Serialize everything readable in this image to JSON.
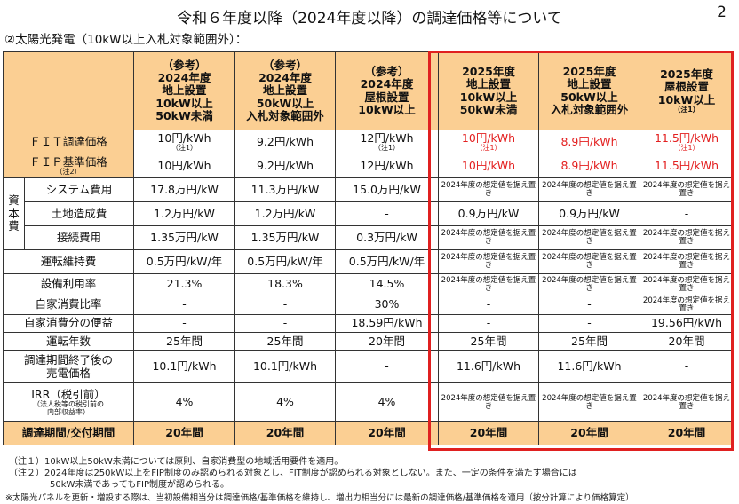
{
  "title": "令和６年度以降（2024年度以降）の調達価格等について",
  "page_number": "2",
  "subtitle": "②太陽光発電（10kW以上入札対象範囲外）：",
  "columns": [
    {
      "l1": "（参考）",
      "l2": "2024年度",
      "l3": "地上設置",
      "l4": "10kW以上",
      "l5": "50kW未満",
      "note": ""
    },
    {
      "l1": "（参考）",
      "l2": "2024年度",
      "l3": "地上設置",
      "l4": "50kW以上",
      "l5": "入札対象範囲外",
      "note": ""
    },
    {
      "l1": "（参考）",
      "l2": "2024年度",
      "l3": "屋根設置",
      "l4": "10kW以上",
      "l5": "",
      "note": ""
    },
    {
      "l1": "2025年度",
      "l2": "地上設置",
      "l3": "10kW以上",
      "l4": "50kW未満",
      "l5": "",
      "note": ""
    },
    {
      "l1": "2025年度",
      "l2": "地上設置",
      "l3": "50kW以上",
      "l4": "入札対象範囲外",
      "l5": "",
      "note": ""
    },
    {
      "l1": "2025年度",
      "l2": "屋根設置",
      "l3": "10kW以上",
      "l4": "",
      "l5": "",
      "note": "（注1）"
    }
  ],
  "rows": {
    "fit": {
      "label": "ＦＩＴ調達価格",
      "values": [
        "10円/kWh",
        "9.2円/kWh",
        "12円/kWh",
        "10円/kWh",
        "8.9円/kWh",
        "11.5円/kWh"
      ],
      "notes": [
        "（注1）",
        "",
        "（注1）",
        "（注1）",
        "",
        "（注1）"
      ]
    },
    "fip": {
      "label": "ＦＩＰ基準価格",
      "note": "（注2）",
      "values": [
        "10円/kWh",
        "9.2円/kWh",
        "12円/kWh",
        "10円/kWh",
        "8.9円/kWh",
        "11.5円/kWh"
      ]
    },
    "capital_group": "資本費",
    "capital_group_chars": [
      "資",
      "本",
      "費"
    ],
    "system": {
      "label": "システム費用",
      "values": [
        "17.8万円/kW",
        "11.3万円/kW",
        "15.0万円/kW",
        "2024年度の想定値を据え置き",
        "2024年度の想定値を据え置き",
        "2024年度の想定値を据え置き"
      ]
    },
    "land": {
      "label": "土地造成費",
      "values": [
        "1.2万円/kW",
        "1.2万円/kW",
        "-",
        "0.9万円/kW",
        "0.9万円/kW",
        "-"
      ]
    },
    "connection": {
      "label": "接続費用",
      "values": [
        "1.35万円/kW",
        "1.35万円/kW",
        "0.3万円/kW",
        "2024年度の想定値を据え置き",
        "2024年度の想定値を据え置き",
        "2024年度の想定値を据え置き"
      ]
    },
    "om": {
      "label": "運転維持費",
      "values": [
        "0.5万円/kW/年",
        "0.5万円/kW/年",
        "0.5万円/kW/年",
        "2024年度の想定値を据え置き",
        "2024年度の想定値を据え置き",
        "2024年度の想定値を据え置き"
      ]
    },
    "capacity": {
      "label": "設備利用率",
      "values": [
        "21.3%",
        "18.3%",
        "14.5%",
        "2024年度の想定値を据え置き",
        "2024年度の想定値を据え置き",
        "2024年度の想定値を据え置き"
      ]
    },
    "self_ratio": {
      "label": "自家消費比率",
      "values": [
        "-",
        "-",
        "30%",
        "-",
        "-",
        "2024年度の想定値を据え置き"
      ]
    },
    "self_benefit": {
      "label": "自家消費分の便益",
      "values": [
        "-",
        "-",
        "18.59円/kWh",
        "-",
        "-",
        "19.56円/kWh"
      ]
    },
    "years": {
      "label": "運転年数",
      "values": [
        "25年間",
        "25年間",
        "20年間",
        "25年間",
        "25年間",
        "20年間"
      ]
    },
    "post_price": {
      "label1": "調達期間終了後の",
      "label2": "売電価格",
      "values": [
        "10.1円/kWh",
        "10.1円/kWh",
        "-",
        "11.6円/kWh",
        "11.6円/kWh",
        "-"
      ]
    },
    "irr": {
      "label": "IRR（税引前）",
      "sub1": "（法人税等の税引前の",
      "sub2": "内部収益率）",
      "values": [
        "4%",
        "4%",
        "4%",
        "2024年度の想定値を据え置き",
        "2024年度の想定値を据え置き",
        "2024年度の想定値を据え置き"
      ]
    },
    "period": {
      "label": "調達期間/交付期間",
      "values": [
        "20年間",
        "20年間",
        "20年間",
        "20年間",
        "20年間",
        "20年間"
      ]
    }
  },
  "footnotes": {
    "n1": "（注１）10kW以上50kW未満については原則、自家消費型の地域活用要件を適用。",
    "n2a": "（注２）2024年度は250kW以上をFIP制度のみ認められる対象とし、FIT制度が認められる対象としない。また、一定の条件を満たす場合には",
    "n2b": "50kW未満であってもFIP制度が認められる。",
    "n3": "※太陽光パネルを更新・増設する際は、当初設備相当分は調達価格/基準価格を維持し、増出力相当分には最新の調達価格/基準価格を適用（按分計算により価格算定）"
  },
  "colors": {
    "header_bg": "#fbcf93",
    "highlight_border": "#e02020",
    "price_red": "#e32020"
  }
}
